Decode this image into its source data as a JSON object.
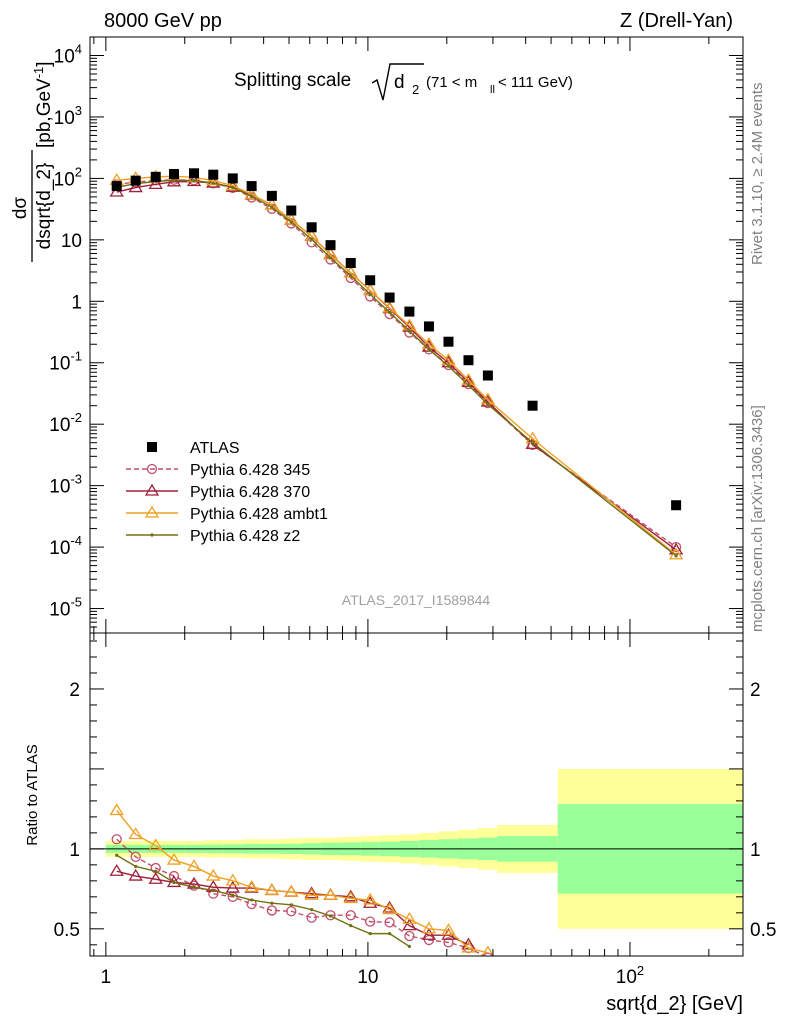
{
  "header": {
    "left": "8000 GeV pp",
    "right": "Z (Drell-Yan)"
  },
  "side_text": {
    "top": "Rivet 3.1.10, ≥ 2.4M events",
    "bottom": "mcplots.cern.ch [arXiv:1306.3436]"
  },
  "chart_data": {
    "type": "scatter",
    "title": "Splitting scale √d₂ (71 < m_ll < 111 GeV)",
    "title_main": "Splitting scale",
    "title_var": "d",
    "title_sub": "2",
    "title_cut": "(71 < m",
    "title_cut_sub": "ll",
    "title_cut_end": " < 111 GeV)",
    "watermark": "ATLAS_2017_I1589844",
    "xlabel": "sqrt{d_2} [GeV]",
    "xscale": "log",
    "xlim": [
      0.87,
      270
    ],
    "x_ticks": [
      {
        "value": 1,
        "label": "1"
      },
      {
        "value": 10,
        "label": "10"
      },
      {
        "value": 100,
        "label": "10",
        "exp": "2"
      }
    ],
    "main": {
      "ylabel_top": "dσ",
      "ylabel_bottom": "dsqrt{d_2}",
      "ylabel_unit": "[pb,GeV",
      "ylabel_unit_exp": "-1",
      "ylabel_unit_end": "]",
      "yscale": "log",
      "ylim": [
        4e-06,
        20000
      ],
      "y_ticks": [
        {
          "value": 1e-05,
          "base": "10",
          "exp": "-5"
        },
        {
          "value": 0.0001,
          "base": "10",
          "exp": "-4"
        },
        {
          "value": 0.001,
          "base": "10",
          "exp": "-3"
        },
        {
          "value": 0.01,
          "base": "10",
          "exp": "-2"
        },
        {
          "value": 0.1,
          "base": "10",
          "exp": "-1"
        },
        {
          "value": 1,
          "base": "1",
          "exp": ""
        },
        {
          "value": 10,
          "base": "10",
          "exp": ""
        },
        {
          "value": 100,
          "base": "10",
          "exp": "2"
        },
        {
          "value": 1000,
          "base": "10",
          "exp": "3"
        },
        {
          "value": 10000,
          "base": "10",
          "exp": "4"
        }
      ],
      "legend_position": "lower-left",
      "series": [
        {
          "name": "ATLAS",
          "color": "#000000",
          "marker": "square",
          "x": [
            1.1,
            1.3,
            1.55,
            1.82,
            2.17,
            2.57,
            3.05,
            3.6,
            4.3,
            5.1,
            6.1,
            7.2,
            8.6,
            10.2,
            12.1,
            14.4,
            17.1,
            20.3,
            24.2,
            28.7,
            42.5,
            150
          ],
          "y": [
            75,
            92,
            106,
            118,
            121,
            115,
            100,
            75,
            52,
            30,
            16,
            8.2,
            4.2,
            2.2,
            1.15,
            0.68,
            0.39,
            0.22,
            0.11,
            0.062,
            0.02,
            0.00048
          ]
        },
        {
          "name": "Pythia 6.428 345",
          "color": "#c0506a",
          "marker": "circle",
          "dashed": true,
          "x": [
            1.1,
            1.3,
            1.55,
            1.82,
            2.17,
            2.57,
            3.05,
            3.6,
            4.3,
            5.1,
            6.1,
            7.2,
            8.6,
            10.2,
            12.1,
            14.4,
            17.1,
            20.3,
            24.2,
            28.7,
            42.5,
            150
          ],
          "y": [
            80,
            87,
            93,
            95,
            93,
            83,
            70,
            49,
            32,
            18.5,
            9.1,
            4.8,
            2.4,
            1.2,
            0.62,
            0.31,
            0.165,
            0.092,
            0.045,
            0.022,
            0.0046,
            0.0001
          ]
        },
        {
          "name": "Pythia 6.428 370",
          "color": "#a0203a",
          "marker": "triangle",
          "x": [
            1.1,
            1.3,
            1.55,
            1.82,
            2.17,
            2.57,
            3.05,
            3.6,
            4.3,
            5.1,
            6.1,
            7.2,
            8.6,
            10.2,
            12.1,
            14.4,
            17.1,
            20.3,
            24.2,
            28.7,
            42.5,
            150
          ],
          "y": [
            60,
            71,
            80,
            88,
            89,
            84,
            72,
            54,
            37,
            21,
            11.5,
            5.8,
            2.9,
            1.5,
            0.76,
            0.38,
            0.18,
            0.1,
            0.048,
            0.023,
            0.0047,
            9e-05
          ]
        },
        {
          "name": "Pythia 6.428 ambt1",
          "color": "#f0a020",
          "marker": "triangle",
          "x": [
            1.1,
            1.3,
            1.55,
            1.82,
            2.17,
            2.57,
            3.05,
            3.6,
            4.3,
            5.1,
            6.1,
            7.2,
            8.6,
            10.2,
            12.1,
            14.4,
            17.1,
            20.3,
            24.2,
            28.7,
            42.5,
            150
          ],
          "y": [
            93,
            100,
            106,
            108,
            104,
            92,
            76,
            55,
            37,
            21,
            11.5,
            5.7,
            2.9,
            1.5,
            0.78,
            0.4,
            0.2,
            0.11,
            0.052,
            0.025,
            0.0058,
            7.5e-05
          ]
        },
        {
          "name": "Pythia 6.428 z2",
          "color": "#707010",
          "marker": "dot",
          "x": [
            1.1,
            1.3,
            1.55,
            1.82,
            2.17,
            2.57,
            3.05,
            3.6,
            4.3,
            5.1,
            6.1,
            7.2,
            8.6,
            10.2,
            12.1,
            14.4,
            17.1,
            20.3,
            24.2,
            28.7,
            42.5,
            150
          ],
          "y": [
            72,
            82,
            89,
            93,
            92,
            84,
            71,
            51,
            34,
            19.5,
            10.2,
            5.1,
            2.6,
            1.3,
            0.66,
            0.33,
            0.165,
            0.088,
            0.043,
            0.021,
            0.005,
            7.2e-05
          ]
        }
      ]
    },
    "ratio": {
      "ylabel": "Ratio to ATLAS",
      "ylim": [
        0.33,
        2.35
      ],
      "y_ticks": [
        {
          "value": 0.5,
          "label": "0.5"
        },
        {
          "value": 1,
          "label": "1"
        },
        {
          "value": 2,
          "label": "2"
        }
      ],
      "bands": {
        "x_edges": [
          1,
          1.2,
          1.42,
          1.69,
          2.0,
          2.37,
          2.82,
          3.35,
          3.97,
          4.7,
          5.6,
          6.6,
          7.9,
          9.4,
          11.1,
          13.2,
          15.7,
          18.6,
          22.1,
          26.2,
          31.1,
          53,
          270
        ],
        "outer": [
          0.05,
          0.05,
          0.05,
          0.05,
          0.05,
          0.055,
          0.055,
          0.06,
          0.06,
          0.065,
          0.07,
          0.07,
          0.075,
          0.08,
          0.085,
          0.09,
          0.1,
          0.11,
          0.12,
          0.13,
          0.15,
          0.5
        ],
        "inner": [
          0.025,
          0.025,
          0.025,
          0.025,
          0.025,
          0.027,
          0.028,
          0.03,
          0.03,
          0.032,
          0.035,
          0.038,
          0.04,
          0.042,
          0.045,
          0.05,
          0.055,
          0.06,
          0.065,
          0.07,
          0.08,
          0.28
        ],
        "outer_color": "#ffff99",
        "inner_color": "#99ff99"
      },
      "series": [
        {
          "name": "Pythia 6.428 345",
          "x": [
            1.1,
            1.3,
            1.55,
            1.82,
            2.17,
            2.57,
            3.05,
            3.6,
            4.3,
            5.1,
            6.1,
            7.2,
            8.6,
            10.2,
            12.1,
            14.4,
            17.1,
            20.3,
            24.2,
            28.7
          ],
          "y": [
            1.06,
            0.95,
            0.88,
            0.83,
            0.77,
            0.72,
            0.7,
            0.655,
            0.615,
            0.61,
            0.57,
            0.585,
            0.585,
            0.545,
            0.54,
            0.455,
            0.43,
            0.415,
            0.38,
            0.32
          ]
        },
        {
          "name": "Pythia 6.428 370",
          "x": [
            1.1,
            1.3,
            1.55,
            1.82,
            2.17,
            2.57,
            3.05,
            3.6,
            4.3,
            5.1,
            6.1,
            7.2,
            8.6,
            10.2,
            12.1,
            14.4,
            17.1,
            20.3,
            24.2
          ],
          "y": [
            0.86,
            0.83,
            0.81,
            0.79,
            0.78,
            0.76,
            0.755,
            0.755,
            0.74,
            0.73,
            0.72,
            0.71,
            0.7,
            0.66,
            0.63,
            0.52,
            0.46,
            0.46,
            0.4
          ]
        },
        {
          "name": "Pythia 6.428 ambt1",
          "x": [
            1.1,
            1.3,
            1.55,
            1.82,
            2.17,
            2.57,
            3.05,
            3.6,
            4.3,
            5.1,
            6.1,
            7.2,
            8.6,
            10.2,
            12.1,
            14.4,
            17.1,
            20.3,
            24.2,
            28.7
          ],
          "y": [
            1.24,
            1.09,
            1.02,
            0.93,
            0.89,
            0.83,
            0.8,
            0.76,
            0.74,
            0.73,
            0.71,
            0.71,
            0.69,
            0.68,
            0.62,
            0.56,
            0.5,
            0.49,
            0.38,
            0.35
          ]
        },
        {
          "name": "Pythia 6.428 z2",
          "x": [
            1.1,
            1.3,
            1.55,
            1.82,
            2.17,
            2.57,
            3.05,
            3.6,
            4.3,
            5.1,
            6.1,
            7.2,
            8.6,
            10.2,
            12.1,
            14.4
          ],
          "y": [
            0.96,
            0.89,
            0.86,
            0.79,
            0.76,
            0.74,
            0.71,
            0.68,
            0.66,
            0.65,
            0.62,
            0.58,
            0.52,
            0.47,
            0.47,
            0.39
          ]
        }
      ]
    }
  }
}
